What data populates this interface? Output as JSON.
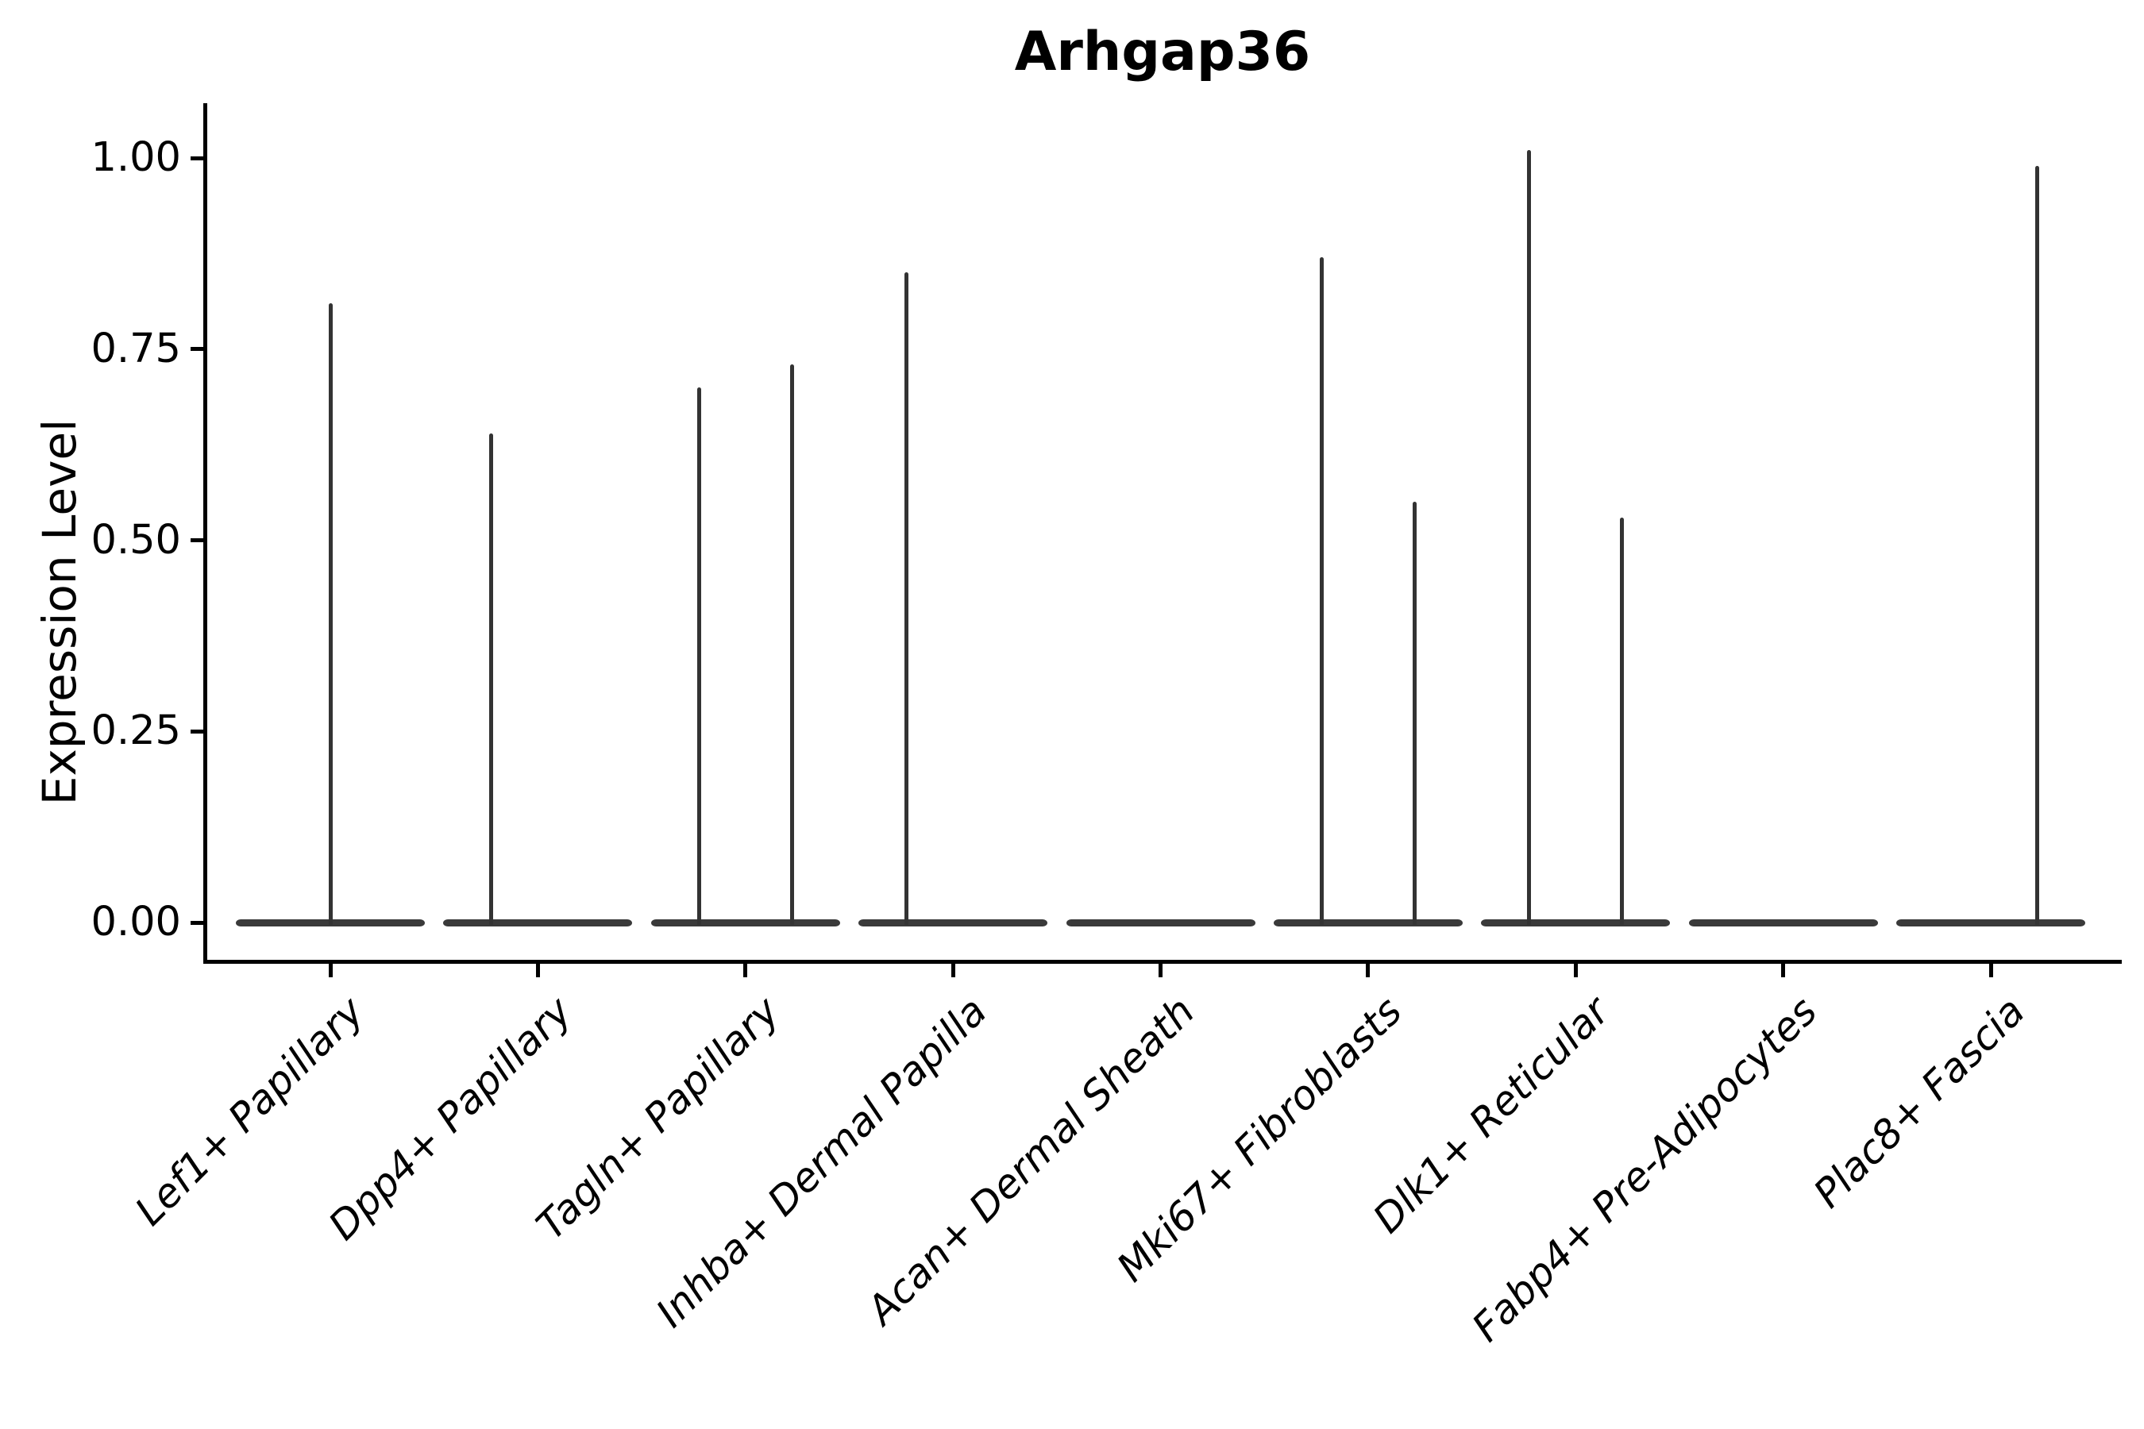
{
  "chart_data": {
    "type": "violin",
    "title": "Arhgap36",
    "xlabel": "",
    "ylabel": "Expression Level",
    "ytick_labels": [
      "1.00",
      "0.75",
      "0.50",
      "0.25",
      "0.00"
    ],
    "ytick_values": [
      1.0,
      0.75,
      0.5,
      0.25,
      0.0
    ],
    "ylim": [
      -0.05,
      1.07
    ],
    "grid": false,
    "legend": "none",
    "baseline_value": 0.0,
    "note": "Each category shows a flat violin body at expression 0 with thin density spikes reaching the maximum expression of rare positive cells; spikes sit in left/center/right slots within each category.",
    "categories": [
      {
        "label": "Lef1+ Papillary",
        "spikes": [
          {
            "slot": "center",
            "value": 0.81
          }
        ]
      },
      {
        "label": "Dpp4+ Papillary",
        "spikes": [
          {
            "slot": "left",
            "value": 0.64
          }
        ]
      },
      {
        "label": "Tagln+ Papillary",
        "spikes": [
          {
            "slot": "left",
            "value": 0.7
          },
          {
            "slot": "right",
            "value": 0.73
          }
        ]
      },
      {
        "label": "Inhba+ Dermal Papilla",
        "spikes": [
          {
            "slot": "left",
            "value": 0.85
          }
        ]
      },
      {
        "label": "Acan+ Dermal Sheath",
        "spikes": []
      },
      {
        "label": "Mki67+ Fibroblasts",
        "spikes": [
          {
            "slot": "left",
            "value": 0.87
          },
          {
            "slot": "right",
            "value": 0.55
          }
        ]
      },
      {
        "label": "Dlk1+ Reticular",
        "spikes": [
          {
            "slot": "left",
            "value": 1.01
          },
          {
            "slot": "right",
            "value": 0.53
          }
        ]
      },
      {
        "label": "Fabp4+ Pre-Adipocytes",
        "spikes": []
      },
      {
        "label": "Plac8+ Fascia",
        "spikes": [
          {
            "slot": "right",
            "value": 0.99
          }
        ]
      }
    ],
    "colors": {
      "violin": "#3a3a3a",
      "spike": "#333333",
      "axis": "#000000",
      "text": "#000000",
      "background": "#ffffff"
    }
  }
}
